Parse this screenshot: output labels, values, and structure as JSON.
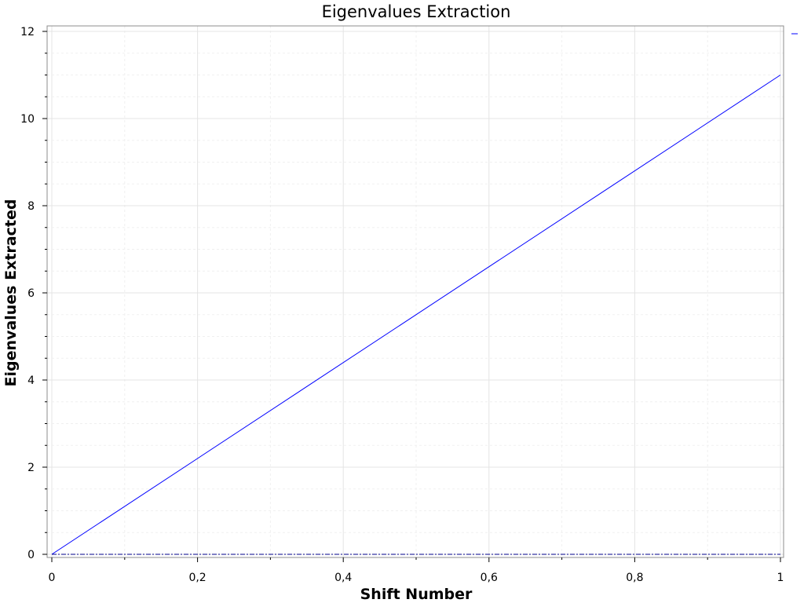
{
  "chart_data": {
    "type": "line",
    "title": "Eigenvalues Extraction",
    "xlabel": "Shift Number",
    "ylabel": "Eigenvalues Extracted",
    "xlim": [
      0,
      1
    ],
    "ylim": [
      0,
      12
    ],
    "grid": true,
    "legend": "top-right",
    "x_ticks": [
      0,
      0.2,
      0.4,
      0.6,
      0.8,
      1
    ],
    "x_tick_labels": [
      "0",
      "0,2",
      "0,4",
      "0,6",
      "0,8",
      "1"
    ],
    "y_ticks": [
      0,
      2,
      4,
      6,
      8,
      10,
      12
    ],
    "y_tick_labels": [
      "0",
      "2",
      "4",
      "6",
      "8",
      "10",
      "12"
    ],
    "series": [
      {
        "name": "",
        "style": "solid",
        "color": "#0000ff",
        "x": [
          0,
          1
        ],
        "y": [
          0,
          11
        ]
      },
      {
        "name": "",
        "style": "dash-dot",
        "color": "#00008b",
        "x": [
          0,
          1
        ],
        "y": [
          0,
          0
        ]
      }
    ]
  }
}
